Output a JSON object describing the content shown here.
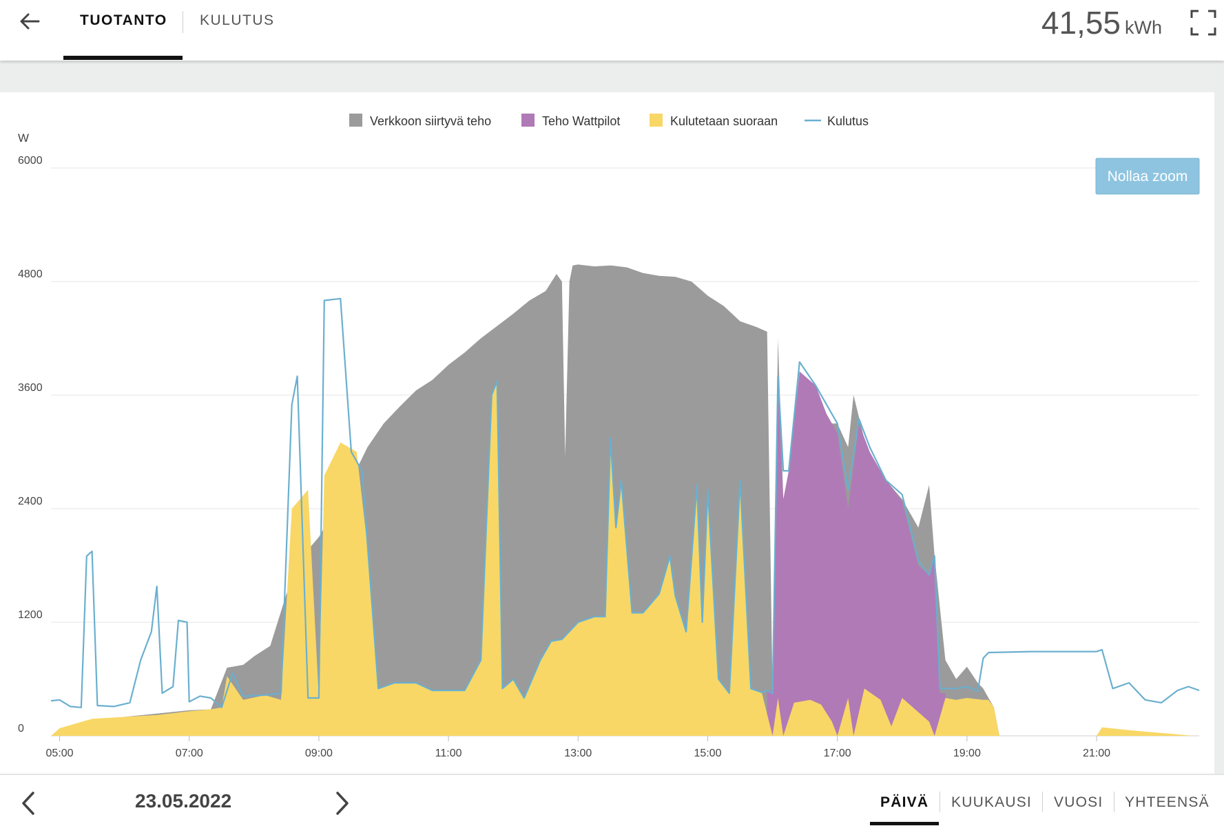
{
  "header": {
    "tabs": [
      {
        "label": "TUOTANTO",
        "active": true
      },
      {
        "label": "KULUTUS",
        "active": false
      }
    ],
    "total_value": "41,55",
    "total_unit": "kWh"
  },
  "footer": {
    "date": "23.05.2022",
    "periods": [
      {
        "label": "PÄIVÄ",
        "active": true
      },
      {
        "label": "KUUKAUSI",
        "active": false
      },
      {
        "label": "VUOSI",
        "active": false
      },
      {
        "label": "YHTEENSÄ",
        "active": false
      }
    ]
  },
  "reset_zoom_label": "Nollaa zoom",
  "colors": {
    "grid_feed": "#9b9b9b",
    "wattpilot": "#b07ab6",
    "direct": "#f8d766",
    "consumption": "#6aafcf",
    "reset_button": "#8ec4e0"
  },
  "chart_data": {
    "type": "area",
    "ylabel": "W",
    "ylim": [
      0,
      6000
    ],
    "yticks": [
      "0",
      "1200",
      "2400",
      "3600",
      "4800",
      "6000"
    ],
    "xlim": [
      "04:52",
      "22:35"
    ],
    "xticks": [
      "05:00",
      "07:00",
      "09:00",
      "11:00",
      "13:00",
      "15:00",
      "17:00",
      "19:00",
      "21:00"
    ],
    "legend_position": "top-center",
    "legend": [
      {
        "name": "Verkkoon siirtyvä teho",
        "kind": "area"
      },
      {
        "name": "Teho Wattpilot",
        "kind": "area"
      },
      {
        "name": "Kulutetaan suoraan",
        "kind": "area"
      },
      {
        "name": "Kulutus",
        "kind": "line"
      }
    ],
    "series": [
      {
        "name": "Verkkoon siirtyvä teho",
        "note_stacking": "top of stack (total production)",
        "points": [
          [
            "04:52",
            0
          ],
          [
            "06:00",
            200
          ],
          [
            "07:00",
            270
          ],
          [
            "07:20",
            280
          ],
          [
            "07:35",
            720
          ],
          [
            "07:50",
            750
          ],
          [
            "08:00",
            840
          ],
          [
            "08:15",
            950
          ],
          [
            "08:30",
            1500
          ],
          [
            "08:45",
            1900
          ],
          [
            "09:00",
            2100
          ],
          [
            "09:15",
            2400
          ],
          [
            "09:30",
            2700
          ],
          [
            "09:45",
            3050
          ],
          [
            "10:00",
            3300
          ],
          [
            "10:15",
            3480
          ],
          [
            "10:30",
            3650
          ],
          [
            "10:45",
            3760
          ],
          [
            "11:00",
            3920
          ],
          [
            "11:15",
            4050
          ],
          [
            "11:30",
            4200
          ],
          [
            "11:45",
            4330
          ],
          [
            "12:00",
            4460
          ],
          [
            "12:15",
            4600
          ],
          [
            "12:30",
            4700
          ],
          [
            "12:40",
            4880
          ],
          [
            "12:45",
            4800
          ],
          [
            "12:48",
            2950
          ],
          [
            "12:52",
            4800
          ],
          [
            "12:55",
            4970
          ],
          [
            "13:00",
            4980
          ],
          [
            "13:15",
            4960
          ],
          [
            "13:30",
            4970
          ],
          [
            "13:45",
            4950
          ],
          [
            "14:00",
            4890
          ],
          [
            "14:15",
            4860
          ],
          [
            "14:30",
            4850
          ],
          [
            "14:45",
            4800
          ],
          [
            "15:00",
            4650
          ],
          [
            "15:15",
            4540
          ],
          [
            "15:30",
            4380
          ],
          [
            "15:45",
            4320
          ],
          [
            "15:55",
            4270
          ],
          [
            "16:00",
            480
          ],
          [
            "16:05",
            4200
          ],
          [
            "16:10",
            2500
          ],
          [
            "16:15",
            2400
          ],
          [
            "16:25",
            3700
          ],
          [
            "16:40",
            3700
          ],
          [
            "16:50",
            3300
          ],
          [
            "17:00",
            3300
          ],
          [
            "17:10",
            3050
          ],
          [
            "17:15",
            3600
          ],
          [
            "17:30",
            2900
          ],
          [
            "17:45",
            2700
          ],
          [
            "18:00",
            2500
          ],
          [
            "18:15",
            2200
          ],
          [
            "18:25",
            2650
          ],
          [
            "18:30",
            1900
          ],
          [
            "18:40",
            800
          ],
          [
            "18:50",
            600
          ],
          [
            "19:00",
            730
          ],
          [
            "19:10",
            560
          ],
          [
            "19:15",
            500
          ],
          [
            "19:25",
            300
          ],
          [
            "19:30",
            0
          ]
        ]
      },
      {
        "name": "Teho Wattpilot",
        "note_stacking": "middle of stack",
        "points": [
          [
            "15:55",
            480
          ],
          [
            "16:00",
            480
          ],
          [
            "16:05",
            3650
          ],
          [
            "16:10",
            2500
          ],
          [
            "16:15",
            2800
          ],
          [
            "16:25",
            3850
          ],
          [
            "16:40",
            3700
          ],
          [
            "16:50",
            3400
          ],
          [
            "17:00",
            3200
          ],
          [
            "17:10",
            2400
          ],
          [
            "17:20",
            3300
          ],
          [
            "17:30",
            3000
          ],
          [
            "17:45",
            2700
          ],
          [
            "18:00",
            2480
          ],
          [
            "18:15",
            1800
          ],
          [
            "18:25",
            1700
          ],
          [
            "18:30",
            1900
          ],
          [
            "18:35",
            450
          ],
          [
            "18:40",
            450
          ]
        ]
      },
      {
        "name": "Kulutetaan suoraan",
        "note_stacking": "bottom of stack",
        "points": [
          [
            "04:52",
            0
          ],
          [
            "05:00",
            80
          ],
          [
            "05:30",
            180
          ],
          [
            "06:00",
            200
          ],
          [
            "06:30",
            220
          ],
          [
            "07:00",
            260
          ],
          [
            "07:20",
            280
          ],
          [
            "07:30",
            300
          ],
          [
            "07:35",
            630
          ],
          [
            "07:50",
            380
          ],
          [
            "08:10",
            430
          ],
          [
            "08:25",
            380
          ],
          [
            "08:35",
            2400
          ],
          [
            "08:50",
            2600
          ],
          [
            "09:00",
            400
          ],
          [
            "09:05",
            2750
          ],
          [
            "09:20",
            3100
          ],
          [
            "09:35",
            3000
          ],
          [
            "09:45",
            2000
          ],
          [
            "09:55",
            500
          ],
          [
            "10:10",
            560
          ],
          [
            "10:30",
            560
          ],
          [
            "10:45",
            480
          ],
          [
            "11:00",
            480
          ],
          [
            "11:15",
            480
          ],
          [
            "11:30",
            800
          ],
          [
            "11:40",
            3600
          ],
          [
            "11:45",
            3750
          ],
          [
            "11:50",
            500
          ],
          [
            "12:00",
            600
          ],
          [
            "12:10",
            400
          ],
          [
            "12:25",
            800
          ],
          [
            "12:35",
            1000
          ],
          [
            "12:45",
            1020
          ],
          [
            "13:00",
            1200
          ],
          [
            "13:15",
            1260
          ],
          [
            "13:25",
            1260
          ],
          [
            "13:30",
            3150
          ],
          [
            "13:35",
            2200
          ],
          [
            "13:40",
            2700
          ],
          [
            "13:50",
            1300
          ],
          [
            "14:00",
            1300
          ],
          [
            "14:15",
            1500
          ],
          [
            "14:25",
            1900
          ],
          [
            "14:30",
            1480
          ],
          [
            "14:40",
            1100
          ],
          [
            "14:50",
            2650
          ],
          [
            "14:55",
            1200
          ],
          [
            "15:00",
            2600
          ],
          [
            "15:10",
            600
          ],
          [
            "15:20",
            450
          ],
          [
            "15:30",
            2700
          ],
          [
            "15:40",
            500
          ],
          [
            "15:50",
            460
          ],
          [
            "16:00",
            0
          ],
          [
            "16:05",
            400
          ],
          [
            "16:10",
            0
          ],
          [
            "16:20",
            350
          ],
          [
            "16:35",
            380
          ],
          [
            "16:45",
            330
          ],
          [
            "16:55",
            150
          ],
          [
            "17:00",
            0
          ],
          [
            "17:10",
            400
          ],
          [
            "17:15",
            0
          ],
          [
            "17:25",
            500
          ],
          [
            "17:40",
            380
          ],
          [
            "17:50",
            100
          ],
          [
            "18:00",
            400
          ],
          [
            "18:15",
            250
          ],
          [
            "18:25",
            150
          ],
          [
            "18:30",
            0
          ],
          [
            "18:40",
            400
          ],
          [
            "18:50",
            380
          ],
          [
            "19:00",
            400
          ],
          [
            "19:15",
            380
          ],
          [
            "19:20",
            380
          ],
          [
            "19:25",
            300
          ],
          [
            "19:30",
            0
          ],
          [
            "21:00",
            0
          ],
          [
            "21:05",
            90
          ],
          [
            "21:30",
            60
          ],
          [
            "22:00",
            30
          ],
          [
            "22:30",
            0
          ]
        ]
      },
      {
        "name": "Kulutus",
        "points": [
          [
            "04:52",
            370
          ],
          [
            "05:00",
            380
          ],
          [
            "05:10",
            310
          ],
          [
            "05:20",
            300
          ],
          [
            "05:25",
            1900
          ],
          [
            "05:30",
            1950
          ],
          [
            "05:35",
            320
          ],
          [
            "05:50",
            310
          ],
          [
            "06:05",
            350
          ],
          [
            "06:15",
            800
          ],
          [
            "06:25",
            1100
          ],
          [
            "06:30",
            1580
          ],
          [
            "06:35",
            450
          ],
          [
            "06:45",
            520
          ],
          [
            "06:50",
            1220
          ],
          [
            "06:58",
            1200
          ],
          [
            "07:00",
            360
          ],
          [
            "07:10",
            420
          ],
          [
            "07:20",
            400
          ],
          [
            "07:30",
            300
          ],
          [
            "07:40",
            660
          ],
          [
            "07:50",
            420
          ],
          [
            "08:10",
            430
          ],
          [
            "08:25",
            450
          ],
          [
            "08:35",
            3500
          ],
          [
            "08:40",
            3800
          ],
          [
            "08:50",
            400
          ],
          [
            "09:00",
            400
          ],
          [
            "09:05",
            4600
          ],
          [
            "09:20",
            4620
          ],
          [
            "09:30",
            3000
          ],
          [
            "09:40",
            2800
          ],
          [
            "09:55",
            500
          ],
          [
            "10:10",
            560
          ],
          [
            "10:30",
            560
          ],
          [
            "10:45",
            480
          ],
          [
            "11:00",
            480
          ],
          [
            "11:15",
            480
          ],
          [
            "11:30",
            800
          ],
          [
            "11:40",
            3600
          ],
          [
            "11:45",
            3750
          ],
          [
            "11:50",
            500
          ],
          [
            "12:00",
            600
          ],
          [
            "12:10",
            400
          ],
          [
            "12:25",
            800
          ],
          [
            "12:35",
            1000
          ],
          [
            "12:45",
            1020
          ],
          [
            "13:00",
            1200
          ],
          [
            "13:15",
            1260
          ],
          [
            "13:25",
            1260
          ],
          [
            "13:30",
            3150
          ],
          [
            "13:35",
            2200
          ],
          [
            "13:40",
            2700
          ],
          [
            "13:50",
            1300
          ],
          [
            "14:00",
            1300
          ],
          [
            "14:15",
            1500
          ],
          [
            "14:25",
            1900
          ],
          [
            "14:30",
            1480
          ],
          [
            "14:40",
            1100
          ],
          [
            "14:50",
            2650
          ],
          [
            "14:55",
            1200
          ],
          [
            "15:00",
            2600
          ],
          [
            "15:10",
            600
          ],
          [
            "15:20",
            450
          ],
          [
            "15:30",
            2700
          ],
          [
            "15:40",
            500
          ],
          [
            "15:50",
            460
          ],
          [
            "15:55",
            480
          ],
          [
            "16:00",
            450
          ],
          [
            "16:05",
            3800
          ],
          [
            "16:10",
            2800
          ],
          [
            "16:15",
            2800
          ],
          [
            "16:25",
            3950
          ],
          [
            "16:40",
            3700
          ],
          [
            "16:50",
            3500
          ],
          [
            "17:00",
            3300
          ],
          [
            "17:10",
            2600
          ],
          [
            "17:20",
            3350
          ],
          [
            "17:30",
            3050
          ],
          [
            "17:45",
            2700
          ],
          [
            "18:00",
            2550
          ],
          [
            "18:15",
            1850
          ],
          [
            "18:25",
            1700
          ],
          [
            "18:30",
            1900
          ],
          [
            "18:35",
            500
          ],
          [
            "18:50",
            500
          ],
          [
            "19:00",
            520
          ],
          [
            "19:10",
            470
          ],
          [
            "19:15",
            820
          ],
          [
            "19:20",
            880
          ],
          [
            "20:00",
            890
          ],
          [
            "20:30",
            890
          ],
          [
            "21:00",
            890
          ],
          [
            "21:05",
            910
          ],
          [
            "21:15",
            500
          ],
          [
            "21:30",
            560
          ],
          [
            "21:45",
            380
          ],
          [
            "22:00",
            350
          ],
          [
            "22:15",
            480
          ],
          [
            "22:25",
            520
          ],
          [
            "22:35",
            480
          ]
        ]
      }
    ]
  }
}
